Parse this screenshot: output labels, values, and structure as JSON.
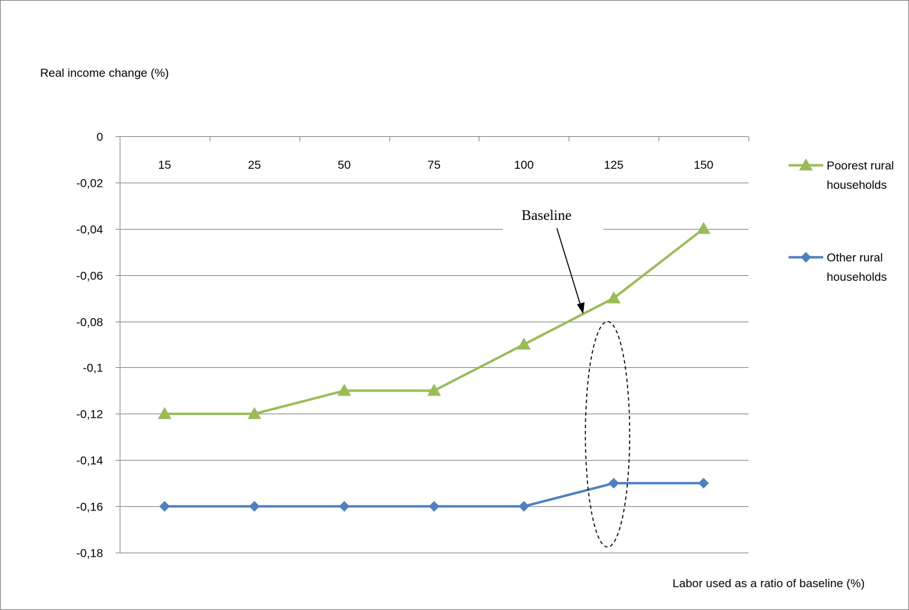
{
  "chart_data": {
    "type": "line",
    "categories": [
      "15",
      "25",
      "50",
      "75",
      "100",
      "125",
      "150"
    ],
    "ylabel": "Real income change (%)",
    "xlabel": "Labor used as a ratio of baseline (%)",
    "ylim": [
      -0.18,
      0
    ],
    "yticks": [
      "0",
      "-0,02",
      "-0,04",
      "-0,06",
      "-0,08",
      "-0,1",
      "-0,12",
      "-0,14",
      "-0,16",
      "-0,18"
    ],
    "ytick_values": [
      0,
      -0.02,
      -0.04,
      -0.06,
      -0.08,
      -0.1,
      -0.12,
      -0.14,
      -0.16,
      -0.18
    ],
    "x_axis_position": "top",
    "grid": "horizontal",
    "legend_position": "right",
    "series": [
      {
        "name": "Poorest rural households",
        "legend_lines": [
          "Poorest rural",
          "households"
        ],
        "color": "#9BBB59",
        "marker": "triangle",
        "values": [
          -0.12,
          -0.12,
          -0.11,
          -0.11,
          -0.09,
          -0.07,
          -0.04
        ]
      },
      {
        "name": "Other rural households",
        "legend_lines": [
          "Other rural",
          "households"
        ],
        "color": "#4F81BD",
        "marker": "diamond",
        "values": [
          -0.16,
          -0.16,
          -0.16,
          -0.16,
          -0.16,
          -0.15,
          -0.15
        ]
      }
    ],
    "annotations": [
      {
        "text": "Baseline",
        "points_to_category": "125",
        "points_to_series": 0
      }
    ]
  }
}
